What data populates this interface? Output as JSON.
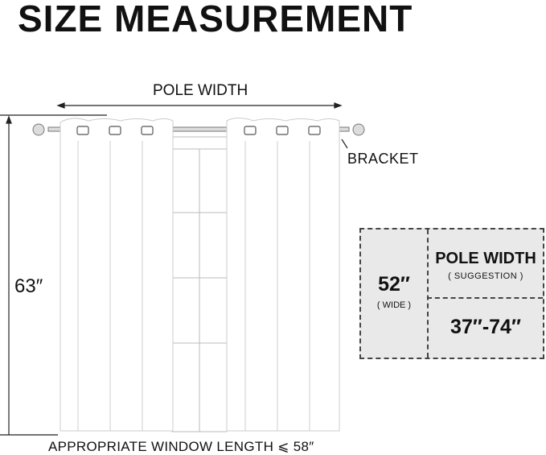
{
  "title": "SIZE MEASUREMENT",
  "diagram": {
    "pole_width_label": "POLE WIDTH",
    "bracket_label": "BRACKET",
    "height_label": "63″",
    "window_length_label": "APPROPRIATE WINDOW LENGTH ⩽ 58″"
  },
  "spec_box": {
    "width_value": "52″",
    "width_note": "( WIDE )",
    "pole_title": "POLE WIDTH",
    "pole_note": "( SUGGESTION )",
    "pole_range": "37″-74″"
  }
}
